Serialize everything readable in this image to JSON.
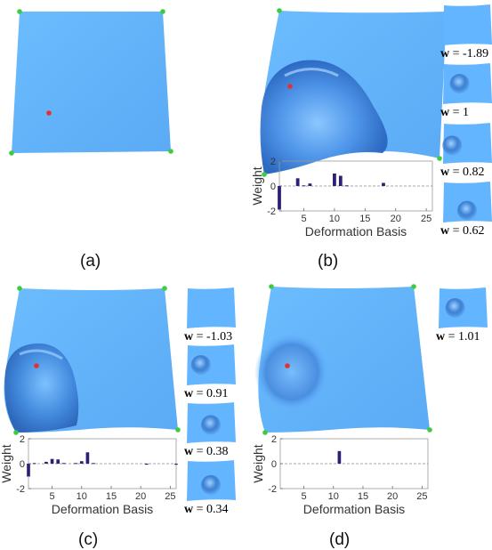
{
  "captions": {
    "a": "(a)",
    "b": "(b)",
    "c": "(c)",
    "d": "(d)"
  },
  "colors": {
    "surface": "#64b5ff",
    "surface_dark": "#2f73c8",
    "handle": "#3dcc3d",
    "point": "#e53030",
    "bar": "#2b1f77"
  },
  "weight_prefix": "w",
  "thumbnails": {
    "b": [
      " = -1.89",
      " = 1",
      " = 0.82",
      " = 0.62"
    ],
    "c": [
      " = -1.03",
      " = 0.91",
      " = 0.38",
      " = 0.34"
    ],
    "d": [
      " = 1.01"
    ]
  },
  "chart_data": [
    {
      "panel": "b",
      "type": "bar",
      "xlabel": "Deformation Basis",
      "ylabel": "Weight",
      "ylim": [
        -2,
        2
      ],
      "xlim": [
        1,
        26
      ],
      "xticks": [
        5,
        10,
        15,
        20,
        25
      ],
      "yticks": [
        -2,
        0,
        2
      ],
      "x": [
        1,
        2,
        3,
        4,
        5,
        6,
        7,
        8,
        9,
        10,
        11,
        12,
        13,
        14,
        15,
        16,
        17,
        18,
        19,
        20,
        21,
        22,
        23,
        24,
        25
      ],
      "values": [
        -1.89,
        0.0,
        0.0,
        0.62,
        0.05,
        0.2,
        0.0,
        0.0,
        0.0,
        1.0,
        0.82,
        0.05,
        0.0,
        0.0,
        0.0,
        0.0,
        0.0,
        0.25,
        0.0,
        0.0,
        0.0,
        0.0,
        0.0,
        0.0,
        0.0
      ]
    },
    {
      "panel": "c",
      "type": "bar",
      "xlabel": "Deformation Basis",
      "ylabel": "Weight",
      "ylim": [
        -2,
        2
      ],
      "xlim": [
        1,
        26
      ],
      "xticks": [
        5,
        10,
        15,
        20,
        25
      ],
      "yticks": [
        -2,
        0,
        2
      ],
      "x": [
        1,
        2,
        3,
        4,
        5,
        6,
        7,
        8,
        9,
        10,
        11,
        12,
        13,
        14,
        15,
        16,
        17,
        18,
        19,
        20,
        21,
        22,
        23,
        24,
        25,
        26
      ],
      "values": [
        -1.03,
        0.05,
        0.0,
        0.15,
        0.38,
        0.34,
        0.05,
        0.0,
        0.05,
        0.2,
        0.91,
        0.05,
        0.0,
        0.0,
        0.0,
        0.0,
        0.0,
        0.0,
        0.0,
        0.0,
        -0.08,
        0.0,
        0.0,
        0.0,
        0.0,
        -0.08
      ]
    },
    {
      "panel": "d",
      "type": "bar",
      "xlabel": "Deformation Basis",
      "ylabel": "Weight",
      "ylim": [
        -2,
        2
      ],
      "xlim": [
        1,
        26
      ],
      "xticks": [
        5,
        10,
        15,
        20,
        25
      ],
      "yticks": [
        -2,
        0,
        2
      ],
      "x": [
        11
      ],
      "values": [
        1.01
      ]
    }
  ]
}
